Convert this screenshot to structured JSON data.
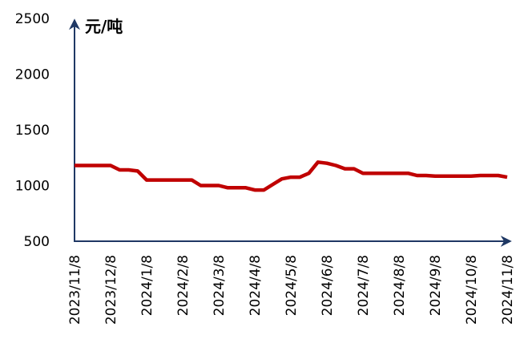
{
  "chart_data": {
    "type": "line",
    "y_axis_label": "元/吨",
    "categories": [
      "2023/11/8",
      null,
      null,
      null,
      "2023/12/8",
      null,
      null,
      null,
      "2024/1/8",
      null,
      null,
      null,
      "2024/2/8",
      null,
      null,
      null,
      "2024/3/8",
      null,
      null,
      null,
      "2024/4/8",
      null,
      null,
      null,
      "2024/5/8",
      null,
      null,
      null,
      "2024/6/8",
      null,
      null,
      null,
      "2024/7/8",
      null,
      null,
      null,
      "2024/8/8",
      null,
      null,
      null,
      "2024/9/8",
      null,
      null,
      null,
      "2024/10/8",
      null,
      null,
      null,
      "2024/11/8"
    ],
    "series": [
      {
        "color": "#c00000",
        "values": [
          1180,
          1180,
          1180,
          1180,
          1180,
          1140,
          1140,
          1130,
          1050,
          1050,
          1050,
          1050,
          1050,
          1050,
          1000,
          1000,
          1000,
          980,
          980,
          980,
          960,
          960,
          1010,
          1060,
          1075,
          1075,
          1110,
          1210,
          1200,
          1180,
          1150,
          1150,
          1110,
          1110,
          1110,
          1110,
          1110,
          1110,
          1090,
          1090,
          1085,
          1085,
          1085,
          1085,
          1085,
          1090,
          1090,
          1090,
          1075
        ]
      }
    ],
    "ylim": [
      500,
      2500
    ],
    "yticks": [
      500,
      1000,
      1500,
      2000,
      2500
    ],
    "grid": false
  }
}
